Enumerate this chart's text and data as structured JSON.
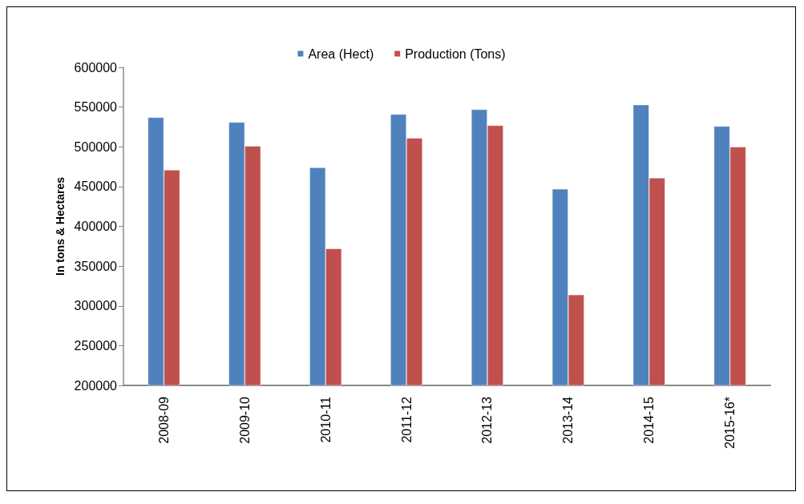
{
  "chart_data": {
    "type": "bar",
    "ylabel": "In tons & Hectares",
    "categories": [
      "2008-09",
      "2009-10",
      "2010-11",
      "2011-12",
      "2012-13",
      "2013-14",
      "2014-15",
      "2015-16*"
    ],
    "series": [
      {
        "name": "Area (Hect)",
        "color": "#4f81bd",
        "values": [
          537000,
          531000,
          474000,
          541000,
          547000,
          447000,
          553000,
          526000
        ]
      },
      {
        "name": "Production (Tons)",
        "color": "#c0504d",
        "values": [
          471000,
          501000,
          372000,
          511000,
          527000,
          314000,
          461000,
          500000
        ]
      }
    ],
    "ylim": [
      200000,
      600000
    ],
    "yticks": [
      200000,
      250000,
      300000,
      350000,
      400000,
      450000,
      500000,
      550000,
      600000
    ],
    "grid": false,
    "legend": "top"
  }
}
